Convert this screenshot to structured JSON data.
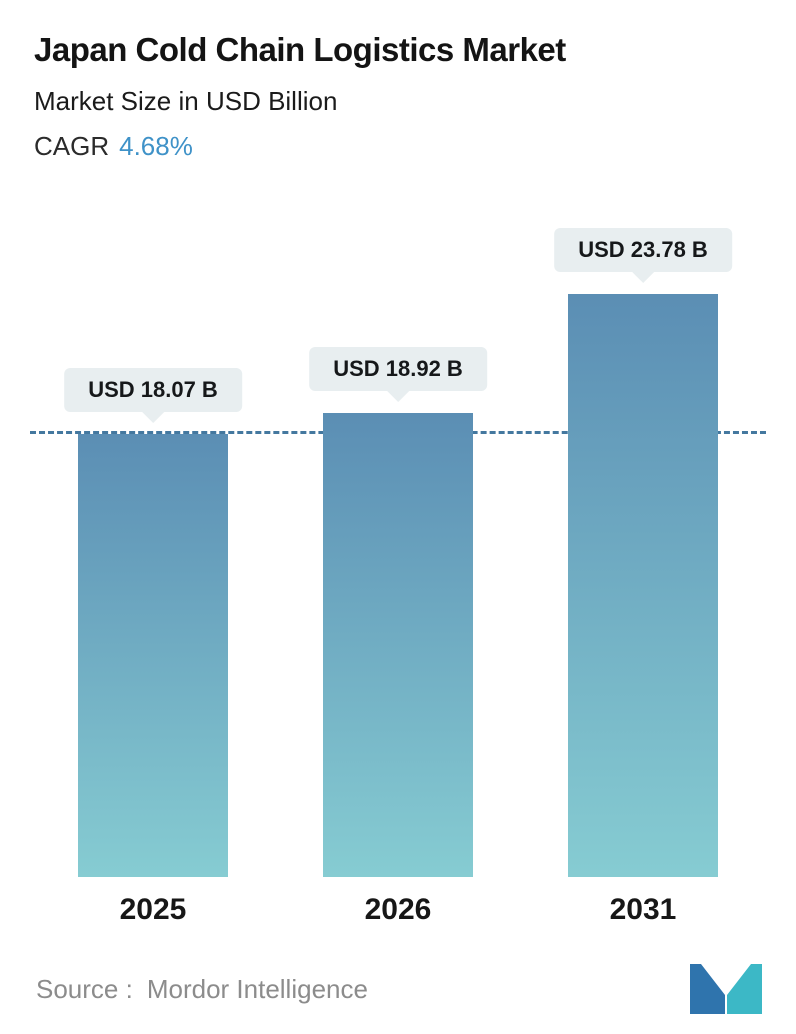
{
  "header": {
    "title": "Japan Cold Chain Logistics Market",
    "subtitle": "Market Size in USD Billion",
    "cagr_label": "CAGR",
    "cagr_value": "4.68%"
  },
  "chart_data": {
    "type": "bar",
    "title": "Japan Cold Chain Logistics Market",
    "ylabel": "Market Size in USD Billion",
    "categories": [
      "2025",
      "2026",
      "2031"
    ],
    "values": [
      18.07,
      18.92,
      23.78
    ],
    "labels": [
      "USD 18.07 B",
      "USD 18.92 B",
      "USD 23.78 B"
    ],
    "ylim": [
      0,
      24.5
    ],
    "reference_line": 18.07,
    "grid": false,
    "legend": "none",
    "colors": {
      "bar_gradient_top": "#5b8eb4",
      "bar_gradient_bottom": "#86ccd2",
      "dashed_line": "#44789f",
      "label_background": "#e8eef0",
      "cagr_accent": "#3f92c8"
    }
  },
  "footer": {
    "source_label": "Source :",
    "source_value": "Mordor Intelligence"
  }
}
